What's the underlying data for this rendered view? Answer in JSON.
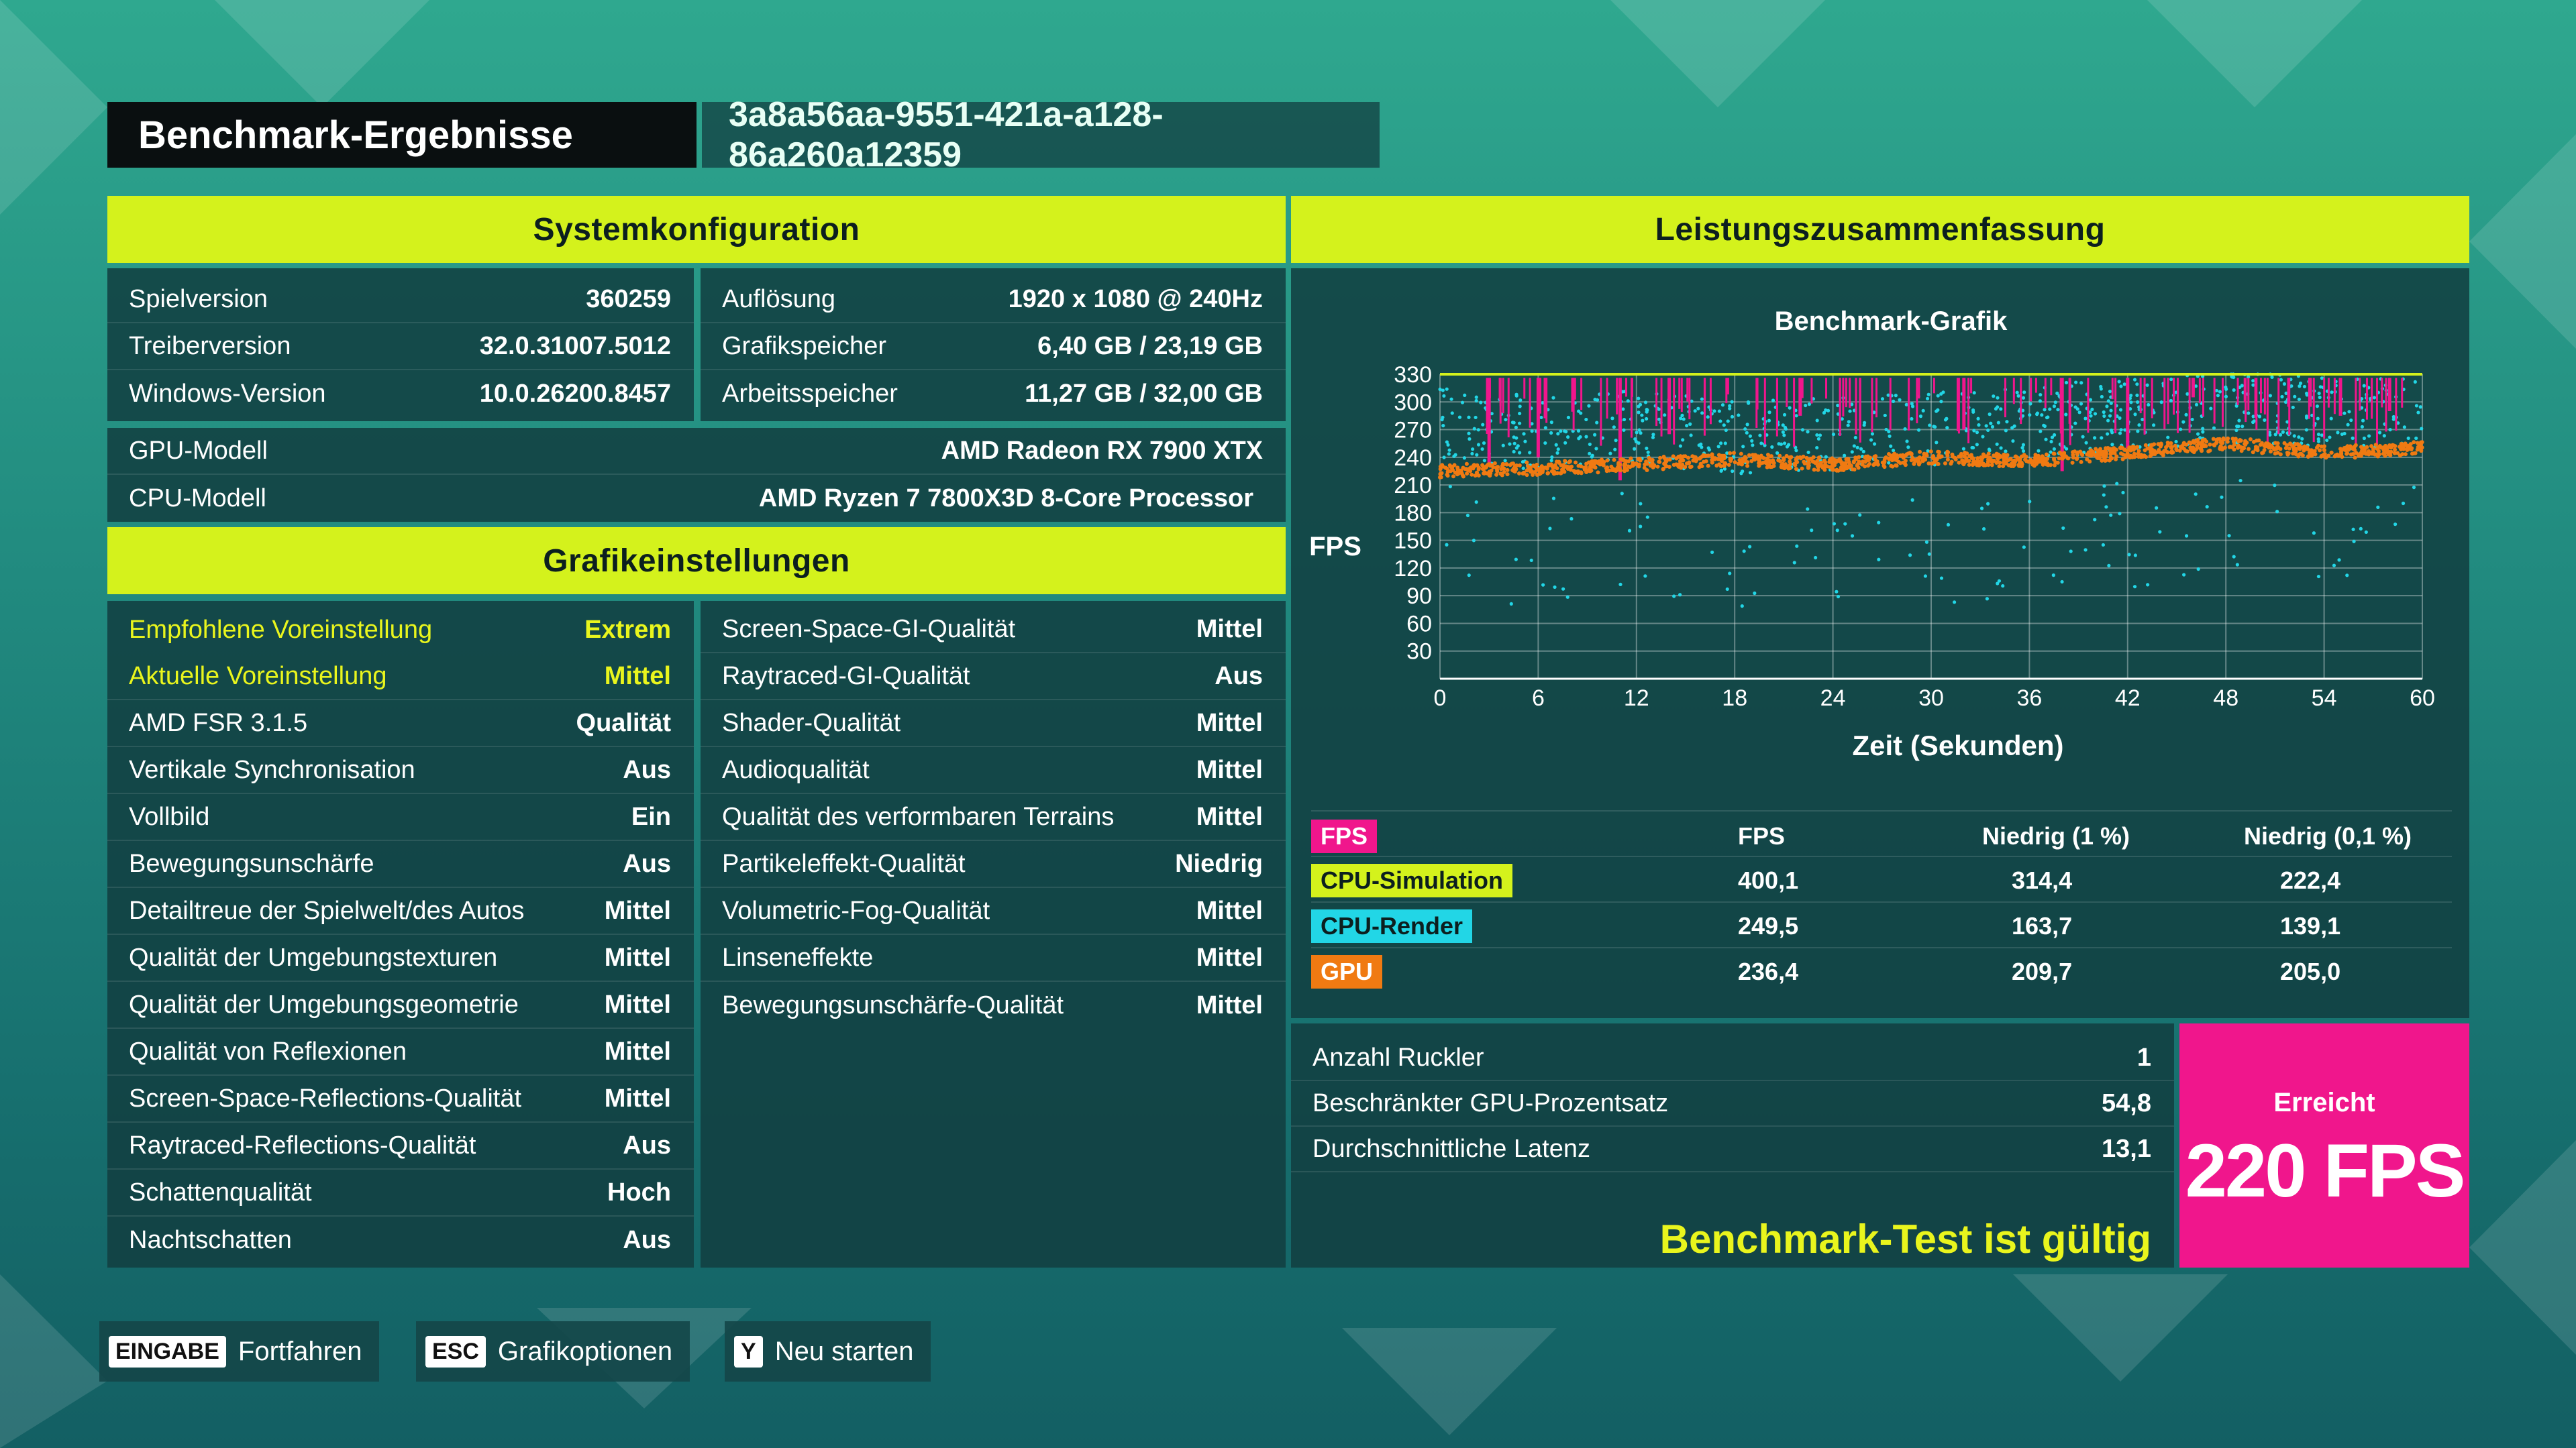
{
  "header": {
    "title": "Benchmark-Ergebnisse",
    "run_id": "3a8a56aa-9551-421a-a128-86a260a12359"
  },
  "system": {
    "heading": "Systemkonfiguration",
    "left": [
      {
        "label": "Spielversion",
        "value": "360259"
      },
      {
        "label": "Treiberversion",
        "value": "32.0.31007.5012"
      },
      {
        "label": "Windows-Version",
        "value": "10.0.26200.8457"
      }
    ],
    "right": [
      {
        "label": "Auflösung",
        "value": "1920 x 1080 @ 240Hz"
      },
      {
        "label": "Grafikspeicher",
        "value": "6,40 GB / 23,19 GB"
      },
      {
        "label": "Arbeitsspeicher",
        "value": "11,27 GB / 32,00 GB"
      }
    ],
    "full": [
      {
        "label": "GPU-Modell",
        "value": "AMD Radeon RX 7900 XTX"
      },
      {
        "label": "CPU-Modell",
        "value": "AMD Ryzen 7 7800X3D 8-Core Processor"
      }
    ]
  },
  "graphics": {
    "heading": "Grafikeinstellungen",
    "left": [
      {
        "label": "Empfohlene Voreinstellung",
        "value": "Extrem"
      },
      {
        "label": "Aktuelle Voreinstellung",
        "value": "Mittel"
      },
      {
        "label": "AMD FSR 3.1.5",
        "value": "Qualität"
      },
      {
        "label": "Vertikale Synchronisation",
        "value": "Aus"
      },
      {
        "label": "Vollbild",
        "value": "Ein"
      },
      {
        "label": "Bewegungsunschärfe",
        "value": "Aus"
      },
      {
        "label": "Detailtreue der Spielwelt/des Autos",
        "value": "Mittel"
      },
      {
        "label": "Qualität der Umgebungstexturen",
        "value": "Mittel"
      },
      {
        "label": "Qualität der Umgebungsgeometrie",
        "value": "Mittel"
      },
      {
        "label": "Qualität von Reflexionen",
        "value": "Mittel"
      },
      {
        "label": "Screen-Space-Reflections-Qualität",
        "value": "Mittel"
      },
      {
        "label": "Raytraced-Reflections-Qualität",
        "value": "Aus"
      },
      {
        "label": "Schattenqualität",
        "value": "Hoch"
      },
      {
        "label": "Nachtschatten",
        "value": "Aus"
      }
    ],
    "right": [
      {
        "label": "Screen-Space-GI-Qualität",
        "value": "Mittel"
      },
      {
        "label": "Raytraced-GI-Qualität",
        "value": "Aus"
      },
      {
        "label": "Shader-Qualität",
        "value": "Mittel"
      },
      {
        "label": "Audioqualität",
        "value": "Mittel"
      },
      {
        "label": "Qualität des verformbaren Terrains",
        "value": "Mittel"
      },
      {
        "label": "Partikeleffekt-Qualität",
        "value": "Niedrig"
      },
      {
        "label": "Volumetric-Fog-Qualität",
        "value": "Mittel"
      },
      {
        "label": "Linseneffekte",
        "value": "Mittel"
      },
      {
        "label": "Bewegungsunschärfe-Qualität",
        "value": "Mittel"
      }
    ]
  },
  "performance": {
    "heading": "Leistungszusammenfassung",
    "stats_headers": [
      "FPS",
      "FPS",
      "Niedrig (1 %)",
      "Niedrig (0,1 %)"
    ],
    "stats": [
      {
        "name": "CPU-Simulation",
        "color": "#d4f21c",
        "fps": "400,1",
        "low1": "314,4",
        "low01": "222,4"
      },
      {
        "name": "CPU-Render",
        "color": "#22d6e6",
        "fps": "249,5",
        "low1": "163,7",
        "low01": "139,1"
      },
      {
        "name": "GPU",
        "color": "#f07a12",
        "fps": "236,4",
        "low1": "209,7",
        "low01": "205,0"
      }
    ],
    "fps_badge_color": "#f0168c",
    "extra": [
      {
        "label": "Anzahl Ruckler",
        "value": "1"
      },
      {
        "label": "Beschränkter GPU-Prozentsatz",
        "value": "54,8"
      },
      {
        "label": "Durchschnittliche Latenz",
        "value": "13,1"
      }
    ],
    "valid_text": "Benchmark-Test ist gültig",
    "achieved_label": "Erreicht",
    "achieved_value": "220 FPS"
  },
  "chart_data": {
    "type": "scatter",
    "title": "Benchmark-Grafik",
    "xlabel": "Zeit (Sekunden)",
    "ylabel": "FPS",
    "xlim": [
      0,
      60
    ],
    "ylim": [
      0,
      330
    ],
    "x_ticks": [
      "0",
      "6",
      "12",
      "18",
      "24",
      "30",
      "36",
      "42",
      "48",
      "54",
      "60"
    ],
    "y_ticks": [
      "30",
      "60",
      "90",
      "120",
      "150",
      "180",
      "210",
      "240",
      "270",
      "300",
      "330"
    ],
    "grid": true,
    "series": [
      {
        "name": "CPU-Simulation",
        "color": "#d4f21c",
        "x": [
          0,
          60
        ],
        "y": [
          330,
          330
        ]
      },
      {
        "name": "FPS",
        "color": "#f0168c",
        "x": [
          3,
          6,
          11,
          14,
          22,
          32,
          38,
          42,
          46,
          55,
          58
        ],
        "y": [
          230,
          240,
          215,
          265,
          285,
          270,
          225,
          250,
          305,
          285,
          290
        ]
      },
      {
        "name": "CPU-Render",
        "color": "#22d6e6",
        "x": [
          0,
          6,
          12,
          18,
          24,
          30,
          36,
          42,
          48,
          54,
          60
        ],
        "y": [
          290,
          275,
          285,
          270,
          275,
          280,
          290,
          295,
          305,
          300,
          295
        ]
      },
      {
        "name": "GPU",
        "color": "#f07a12",
        "x": [
          0,
          6,
          12,
          18,
          24,
          30,
          36,
          42,
          48,
          54,
          60
        ],
        "y": [
          225,
          228,
          232,
          238,
          232,
          240,
          236,
          245,
          255,
          245,
          250
        ]
      }
    ]
  },
  "footer": {
    "keys": [
      {
        "key": "EINGABE",
        "label": "Fortfahren"
      },
      {
        "key": "ESC",
        "label": "Grafikoptionen"
      },
      {
        "key": "Y",
        "label": "Neu starten"
      }
    ]
  }
}
